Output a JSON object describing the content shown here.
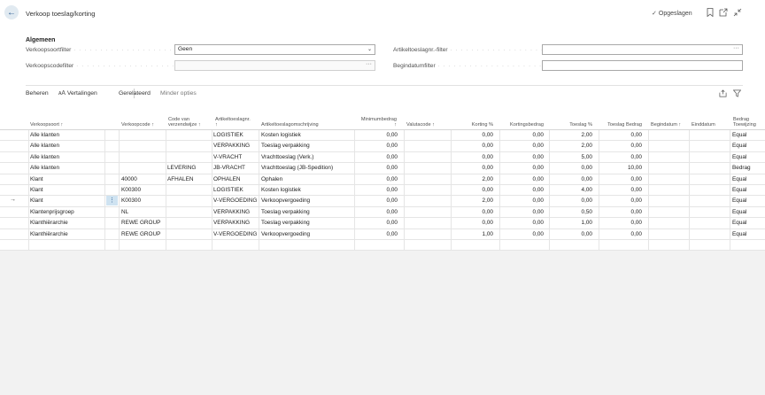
{
  "header": {
    "title": "Verkoop toeslag/korting",
    "saved_label": "Opgeslagen"
  },
  "general": {
    "section_title": "Algemeen",
    "fields": {
      "verkoopsoortfilter": {
        "label": "Verkoopsoortfilter",
        "value": "Geen"
      },
      "verkoopscodefilter": {
        "label": "Verkoopscodefilter",
        "value": ""
      },
      "artikeltoeslagnr_filter": {
        "label": "Artikeltoeslagnr.-filter",
        "value": ""
      },
      "begindatumfilter": {
        "label": "Begindatumfilter",
        "value": ""
      }
    }
  },
  "actions": {
    "beheren": "Beheren",
    "vertalingen": "Vertalingen",
    "gerelateerd": "Gerelateerd",
    "minder_opties": "Minder opties"
  },
  "columns": {
    "verkoopsoort": "Verkoopsoort ↑",
    "verkoopcode": "Verkoopcode ↑",
    "code_van_1": "Code van",
    "code_van_2": "verzendwijze ↑",
    "artikeltoeslagnr_1": "Artikeltoeslagnr.",
    "artikeltoeslagnr_2": "↑",
    "omschrijving": "Artikeltoeslagomschrijving",
    "minimumbedrag_1": "Minimumbedrag",
    "minimumbedrag_2": "↑",
    "valutacode": "Valutacode ↑",
    "korting_pct": "Korting %",
    "kortingsbedrag": "Kortingsbedrag",
    "toeslag_pct": "Toeslag %",
    "toeslag_bedrag": "Toeslag Bedrag",
    "begindatum": "Begindatum ↑",
    "einddatum": "Einddatum",
    "bedrag_1": "Bedrag",
    "bedrag_2": "Toewijzing"
  },
  "rows": [
    {
      "soort": "Alle klanten",
      "code": "",
      "verz": "",
      "art": "LOGISTIEK",
      "oms": "Kosten logistiek",
      "min": "0,00",
      "val": "",
      "kpct": "0,00",
      "kbed": "0,00",
      "tpct": "2,00",
      "tbed": "0,00",
      "begin": "",
      "eind": "",
      "toew": "Equal"
    },
    {
      "soort": "Alle klanten",
      "code": "",
      "verz": "",
      "art": "VERPAKKING",
      "oms": "Toeslag verpakking",
      "min": "0,00",
      "val": "",
      "kpct": "0,00",
      "kbed": "0,00",
      "tpct": "2,00",
      "tbed": "0,00",
      "begin": "",
      "eind": "",
      "toew": "Equal"
    },
    {
      "soort": "Alle klanten",
      "code": "",
      "verz": "",
      "art": "V-VRACHT",
      "oms": "Vrachttoeslag (Verk.)",
      "min": "0,00",
      "val": "",
      "kpct": "0,00",
      "kbed": "0,00",
      "tpct": "5,00",
      "tbed": "0,00",
      "begin": "",
      "eind": "",
      "toew": "Equal"
    },
    {
      "soort": "Alle klanten",
      "code": "",
      "verz": "LEVERING",
      "art": "JB-VRACHT",
      "oms": "Vrachttoeslag (JB-Spedition)",
      "min": "0,00",
      "val": "",
      "kpct": "0,00",
      "kbed": "0,00",
      "tpct": "0,00",
      "tbed": "10,00",
      "begin": "",
      "eind": "",
      "toew": "Bedrag"
    },
    {
      "soort": "Klant",
      "code": "40000",
      "verz": "AFHALEN",
      "art": "OPHALEN",
      "oms": "Ophalen",
      "min": "0,00",
      "val": "",
      "kpct": "2,00",
      "kbed": "0,00",
      "tpct": "0,00",
      "tbed": "0,00",
      "begin": "",
      "eind": "",
      "toew": "Equal"
    },
    {
      "soort": "Klant",
      "code": "K00300",
      "verz": "",
      "art": "LOGISTIEK",
      "oms": "Kosten logistiek",
      "min": "0,00",
      "val": "",
      "kpct": "0,00",
      "kbed": "0,00",
      "tpct": "4,00",
      "tbed": "0,00",
      "begin": "",
      "eind": "",
      "toew": "Equal"
    },
    {
      "soort": "Klant",
      "code": "K00300",
      "verz": "",
      "art": "V-VERGOEDING",
      "oms": "Verkoopvergoeding",
      "min": "0,00",
      "val": "",
      "kpct": "2,00",
      "kbed": "0,00",
      "tpct": "0,00",
      "tbed": "0,00",
      "begin": "",
      "eind": "",
      "toew": "Equal"
    },
    {
      "soort": "Klantenprijsgroep",
      "code": "NL",
      "verz": "",
      "art": "VERPAKKING",
      "oms": "Toeslag verpakking",
      "min": "0,00",
      "val": "",
      "kpct": "0,00",
      "kbed": "0,00",
      "tpct": "0,50",
      "tbed": "0,00",
      "begin": "",
      "eind": "",
      "toew": "Equal"
    },
    {
      "soort": "Klanthiërarchie",
      "code": "REWE GROUP",
      "verz": "",
      "art": "VERPAKKING",
      "oms": "Toeslag verpakking",
      "min": "0,00",
      "val": "",
      "kpct": "0,00",
      "kbed": "0,00",
      "tpct": "1,00",
      "tbed": "0,00",
      "begin": "",
      "eind": "",
      "toew": "Equal"
    },
    {
      "soort": "Klanthiërarchie",
      "code": "REWE GROUP",
      "verz": "",
      "art": "V-VERGOEDING",
      "oms": "Verkoopvergoeding",
      "min": "0,00",
      "val": "",
      "kpct": "1,00",
      "kbed": "0,00",
      "tpct": "0,00",
      "tbed": "0,00",
      "begin": "",
      "eind": "",
      "toew": "Equal"
    }
  ],
  "icons": {
    "back": "back-arrow-icon",
    "bookmark": "bookmark-icon",
    "open_new": "open-in-new-window-icon",
    "collapse": "collapse-icon",
    "share": "share-icon",
    "filter": "filter-icon"
  }
}
